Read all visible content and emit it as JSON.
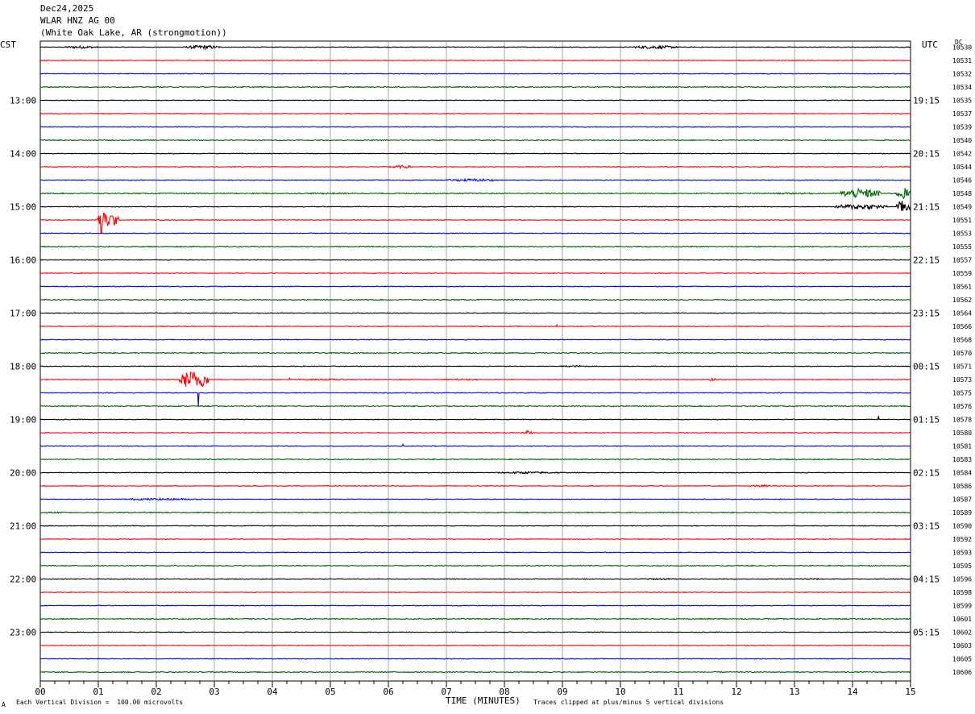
{
  "header": {
    "date": "Dec24,2025",
    "station": "WLAR HNZ AG 00",
    "location": "(White Oak Lake, AR (strongmotion))"
  },
  "corner_left": "CST",
  "corner_right": "UTC",
  "corner_dc": "DC",
  "footer": {
    "scale_note": "Each Vertical Division =  100.00 microvolts",
    "clip_note": "Traces clipped at plus/minus 5 vertical divisions",
    "mark": "A"
  },
  "colors": {
    "trace_cycle": [
      "#000000",
      "#ff0000",
      "#0000ff",
      "#006400"
    ],
    "grid": "#808080"
  },
  "chart_data": {
    "type": "line",
    "title": "",
    "xlabel": "TIME (MINUTES)",
    "ylabel": "",
    "xlim": [
      0,
      15
    ],
    "x_tick_labels": [
      "00",
      "01",
      "02",
      "03",
      "04",
      "05",
      "06",
      "07",
      "08",
      "09",
      "10",
      "11",
      "12",
      "13",
      "14",
      "15"
    ],
    "left_hour_labels": [
      {
        "row": 4,
        "label": "13:00"
      },
      {
        "row": 8,
        "label": "14:00"
      },
      {
        "row": 12,
        "label": "15:00"
      },
      {
        "row": 16,
        "label": "16:00"
      },
      {
        "row": 20,
        "label": "17:00"
      },
      {
        "row": 24,
        "label": "18:00"
      },
      {
        "row": 28,
        "label": "19:00"
      },
      {
        "row": 32,
        "label": "20:00"
      },
      {
        "row": 36,
        "label": "21:00"
      },
      {
        "row": 40,
        "label": "22:00"
      },
      {
        "row": 44,
        "label": "23:00"
      }
    ],
    "right_hour_labels": [
      {
        "row": 4,
        "label": "19:15"
      },
      {
        "row": 8,
        "label": "20:15"
      },
      {
        "row": 12,
        "label": "21:15"
      },
      {
        "row": 16,
        "label": "22:15"
      },
      {
        "row": 20,
        "label": "23:15"
      },
      {
        "row": 24,
        "label": "00:15"
      },
      {
        "row": 28,
        "label": "01:15"
      },
      {
        "row": 32,
        "label": "02:15"
      },
      {
        "row": 36,
        "label": "03:15"
      },
      {
        "row": 40,
        "label": "04:15"
      },
      {
        "row": 44,
        "label": "05:15"
      }
    ],
    "dc_offsets": [
      "10530",
      "10531",
      "10532",
      "10534",
      "10535",
      "10537",
      "10539",
      "10540",
      "10542",
      "10544",
      "10546",
      "10548",
      "10549",
      "10551",
      "10553",
      "10555",
      "10557",
      "10559",
      "10561",
      "10562",
      "10564",
      "10566",
      "10568",
      "10570",
      "10571",
      "10573",
      "10575",
      "10576",
      "10578",
      "10580",
      "10581",
      "10583",
      "10584",
      "10586",
      "10587",
      "10589",
      "10590",
      "10592",
      "10593",
      "10595",
      "10596",
      "10598",
      "10599",
      "10601",
      "10602",
      "10603",
      "10605",
      "10606"
    ],
    "events": [
      {
        "row": 0,
        "start": 0.4,
        "end": 1.0,
        "amp": 0.5
      },
      {
        "row": 0,
        "start": 2.5,
        "end": 3.1,
        "amp": 0.7
      },
      {
        "row": 0,
        "start": 10.2,
        "end": 11.0,
        "amp": 0.6
      },
      {
        "row": 9,
        "start": 6.0,
        "end": 6.4,
        "amp": 0.6
      },
      {
        "row": 10,
        "start": 7.0,
        "end": 7.9,
        "amp": 0.5
      },
      {
        "row": 11,
        "start": 4.5,
        "end": 5.5,
        "amp": 0.3
      },
      {
        "row": 11,
        "start": 12.5,
        "end": 13.5,
        "amp": 0.3
      },
      {
        "row": 11,
        "start": 13.8,
        "end": 14.5,
        "amp": 1.8
      },
      {
        "row": 11,
        "start": 14.75,
        "end": 15.0,
        "amp": 2.2
      },
      {
        "row": 12,
        "start": 13.7,
        "end": 14.6,
        "amp": 1.0
      },
      {
        "row": 12,
        "start": 14.75,
        "end": 15.0,
        "amp": 2.5
      },
      {
        "row": 13,
        "start": 0.95,
        "end": 1.35,
        "amp": 3.0
      },
      {
        "row": 24,
        "start": 8.9,
        "end": 9.5,
        "amp": 0.3
      },
      {
        "row": 25,
        "start": 2.4,
        "end": 2.9,
        "amp": 3.5
      },
      {
        "row": 25,
        "start": 4.3,
        "end": 5.5,
        "amp": 0.3
      },
      {
        "row": 25,
        "start": 6.9,
        "end": 7.6,
        "amp": 0.3
      },
      {
        "row": 25,
        "start": 11.5,
        "end": 11.7,
        "amp": 0.5
      },
      {
        "row": 29,
        "start": 8.3,
        "end": 8.5,
        "amp": 0.6
      },
      {
        "row": 32,
        "start": 7.8,
        "end": 9.0,
        "amp": 0.4
      },
      {
        "row": 33,
        "start": 12.2,
        "end": 12.6,
        "amp": 0.4
      },
      {
        "row": 34,
        "start": 1.4,
        "end": 2.8,
        "amp": 0.4
      },
      {
        "row": 35,
        "start": 0.0,
        "end": 0.5,
        "amp": 0.3
      },
      {
        "row": 40,
        "start": 10.3,
        "end": 11.0,
        "amp": 0.3
      },
      {
        "row": 40,
        "start": 13.0,
        "end": 13.5,
        "amp": 0.3
      }
    ],
    "spikes": [
      {
        "row": 13,
        "x": 1.05,
        "amp": -5.5
      },
      {
        "row": 26,
        "x": 2.72,
        "amp": -5.0
      },
      {
        "row": 28,
        "x": 14.45,
        "amp": 1.3
      },
      {
        "row": 25,
        "x": 4.3,
        "amp": 0.6
      },
      {
        "row": 21,
        "x": 8.9,
        "amp": 0.6
      },
      {
        "row": 29,
        "x": 8.4,
        "amp": 0.8
      },
      {
        "row": 30,
        "x": 6.25,
        "amp": 0.7
      }
    ]
  }
}
